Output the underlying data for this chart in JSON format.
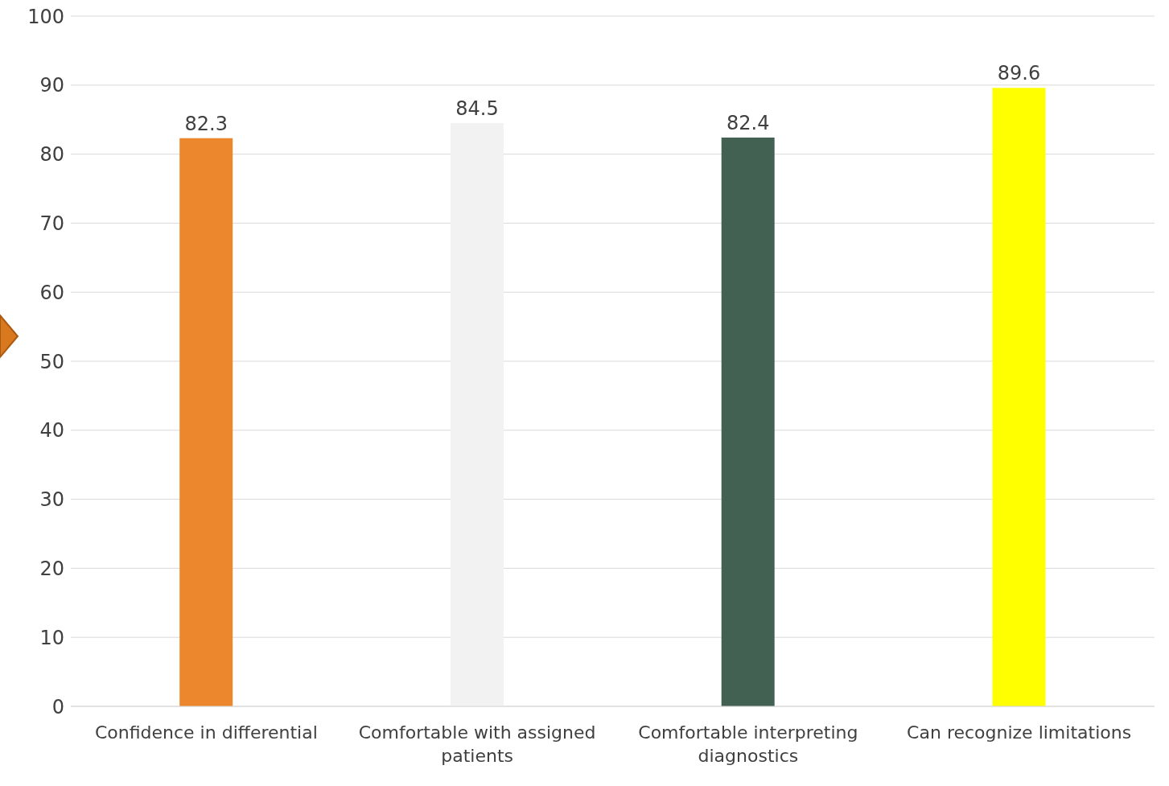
{
  "chart_data": {
    "type": "bar",
    "categories": [
      "Confidence in differential",
      "Comfortable with assigned patients",
      "Comfortable interpreting diagnostics",
      "Can recognize limitations"
    ],
    "values": [
      82.3,
      84.5,
      82.4,
      89.6
    ],
    "colors": [
      "#ed872d",
      "#f2f2f2",
      "#436153",
      "#ffff00"
    ],
    "ylim": [
      0,
      100
    ],
    "yticks": [
      0,
      10,
      20,
      30,
      40,
      50,
      60,
      70,
      80,
      90,
      100
    ],
    "grid": "y",
    "data_labels": true
  }
}
